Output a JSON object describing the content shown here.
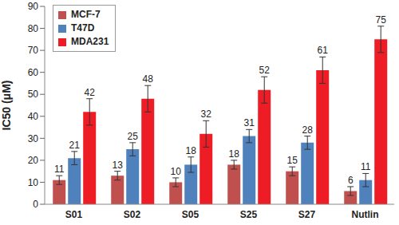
{
  "chart_data": {
    "type": "bar",
    "y_label": "IC50 (μM)",
    "categories": [
      "S01",
      "S02",
      "S05",
      "S25",
      "S27",
      "Nutlin"
    ],
    "series": [
      {
        "name": "MCF-7",
        "color": "#c0504d",
        "values": [
          11,
          13,
          10,
          18,
          15,
          6
        ],
        "errors": [
          2,
          2,
          2,
          2,
          2,
          2
        ]
      },
      {
        "name": "T47D",
        "color": "#4f81bd",
        "values": [
          21,
          25,
          18,
          31,
          28,
          11
        ],
        "errors": [
          3,
          3,
          3.5,
          3,
          3,
          3
        ]
      },
      {
        "name": "MDA231",
        "color": "#ee1c25",
        "values": [
          42,
          48,
          32,
          52,
          61,
          75
        ],
        "errors": [
          6,
          6,
          6,
          6,
          6,
          6
        ]
      }
    ],
    "ylim": [
      0,
      90
    ],
    "yticks": [
      0,
      10,
      20,
      30,
      40,
      50,
      60,
      70,
      80,
      90
    ],
    "grid": false,
    "legend": "upper left",
    "data_labels": true
  }
}
